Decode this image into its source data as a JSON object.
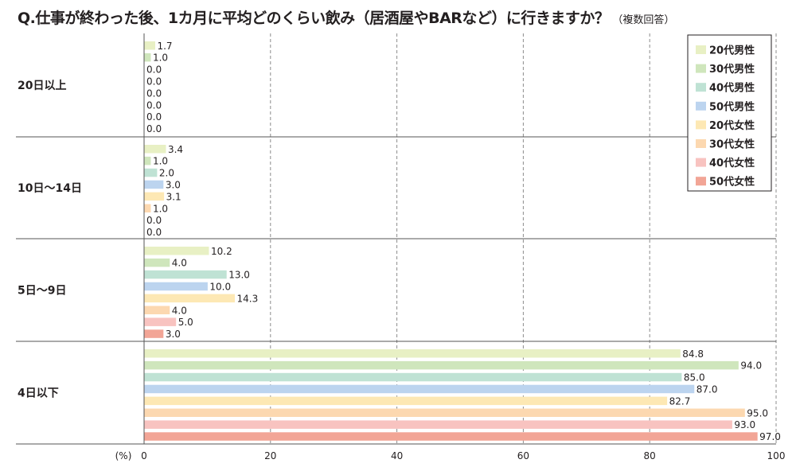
{
  "title": "Q.仕事が終わった後、1カ月に平均どのくらい飲み（居酒屋やBARなど）に行きますか？",
  "title_note": "（複数回答）",
  "chart_data": {
    "type": "bar",
    "orientation": "horizontal",
    "categories": [
      "20日以上",
      "10日〜14日",
      "5日〜9日",
      "4日以下"
    ],
    "series": [
      {
        "name": "20代男性",
        "color": "#e8f0c4",
        "values": [
          1.7,
          3.4,
          10.2,
          84.8
        ]
      },
      {
        "name": "30代男性",
        "color": "#cfe6bc",
        "values": [
          1.0,
          1.0,
          4.0,
          94.0
        ]
      },
      {
        "name": "40代男性",
        "color": "#bfe2d4",
        "values": [
          0.0,
          2.0,
          13.0,
          85.0
        ]
      },
      {
        "name": "50代男性",
        "color": "#bcd4ef",
        "values": [
          0.0,
          3.0,
          10.0,
          87.0
        ]
      },
      {
        "name": "20代女性",
        "color": "#fde8b4",
        "values": [
          0.0,
          3.1,
          14.3,
          82.7
        ]
      },
      {
        "name": "30代女性",
        "color": "#fcd8b0",
        "values": [
          0.0,
          1.0,
          4.0,
          95.0
        ]
      },
      {
        "name": "40代女性",
        "color": "#f8c3c0",
        "values": [
          0.0,
          0.0,
          5.0,
          93.0
        ]
      },
      {
        "name": "50代女性",
        "color": "#f2a596",
        "values": [
          0.0,
          0.0,
          3.0,
          97.0
        ]
      }
    ],
    "value_labels": [
      [
        "1.7",
        "1.0",
        "0.0",
        "0.0",
        "0.0",
        "0.0",
        "0.0",
        "0.0"
      ],
      [
        "3.4",
        "1.0",
        "2.0",
        "3.0",
        "3.1",
        "1.0",
        "0.0",
        "0.0"
      ],
      [
        "10.2",
        "4.0",
        "13.0",
        "10.0",
        "14.3",
        "4.0",
        "5.0",
        "3.0"
      ],
      [
        "84.8",
        "94.0",
        "85.0",
        "87.0",
        "82.7",
        "95.0",
        "93.0",
        "97.0"
      ]
    ],
    "xlim": [
      0,
      100
    ],
    "x_ticks": [
      "0",
      "20",
      "40",
      "60",
      "80",
      "100"
    ],
    "x_unit": "(%)",
    "grid": "vertical dashed",
    "legend": "top-right"
  }
}
